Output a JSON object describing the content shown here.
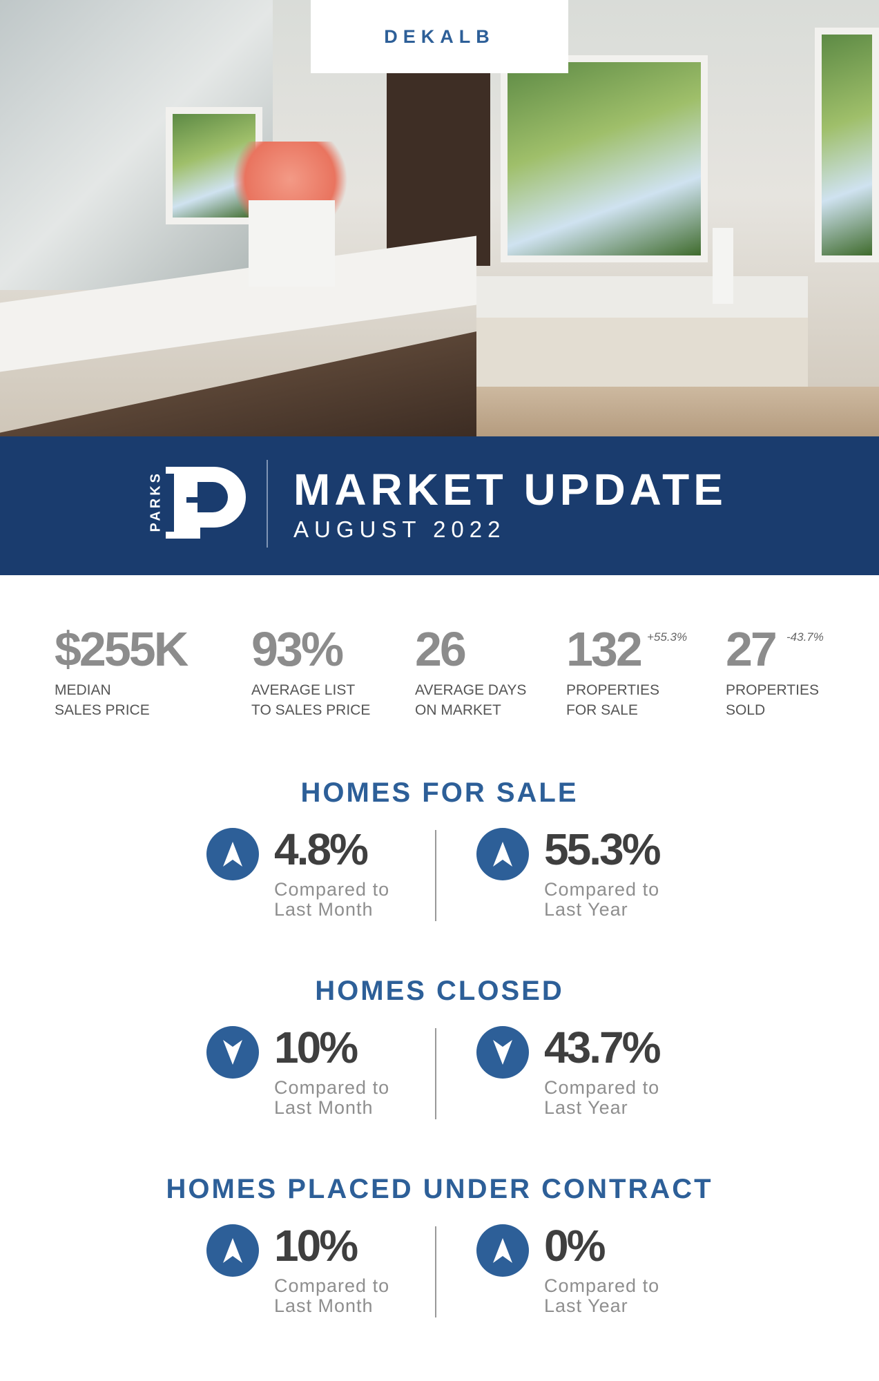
{
  "header": {
    "location_tab": "DEKALB"
  },
  "banner": {
    "logo_text": "PARKS",
    "logo_letter": "P",
    "title": "MARKET UPDATE",
    "subtitle": "AUGUST 2022",
    "color": "#1a3c6e"
  },
  "stats": [
    {
      "value": "$255K",
      "label_line1": "MEDIAN",
      "label_line2": "SALES PRICE",
      "change": ""
    },
    {
      "value": "93%",
      "label_line1": "AVERAGE LIST",
      "label_line2": "TO SALES PRICE",
      "change": ""
    },
    {
      "value": "26",
      "label_line1": "AVERAGE DAYS",
      "label_line2": "ON MARKET",
      "change": ""
    },
    {
      "value": "132",
      "label_line1": "PROPERTIES",
      "label_line2": "FOR SALE",
      "change": "+55.3%"
    },
    {
      "value": "27",
      "label_line1": "PROPERTIES",
      "label_line2": "SOLD",
      "change": "-43.7%"
    }
  ],
  "sections": [
    {
      "title": "HOMES FOR SALE",
      "items": [
        {
          "direction": "up",
          "value": "4.8%",
          "line1": "Compared to",
          "line2": "Last Month"
        },
        {
          "direction": "up",
          "value": "55.3%",
          "line1": "Compared to",
          "line2": "Last Year"
        }
      ]
    },
    {
      "title": "HOMES CLOSED",
      "items": [
        {
          "direction": "down",
          "value": "10%",
          "line1": "Compared to",
          "line2": "Last Month"
        },
        {
          "direction": "down",
          "value": "43.7%",
          "line1": "Compared to",
          "line2": "Last Year"
        }
      ]
    },
    {
      "title": "HOMES PLACED UNDER CONTRACT",
      "items": [
        {
          "direction": "up",
          "value": "10%",
          "line1": "Compared to",
          "line2": "Last Month"
        },
        {
          "direction": "up",
          "value": "0%",
          "line1": "Compared to",
          "line2": "Last Year"
        }
      ]
    }
  ],
  "colors": {
    "accent": "#2d5f98",
    "stat_gray": "#8c8c8c"
  }
}
